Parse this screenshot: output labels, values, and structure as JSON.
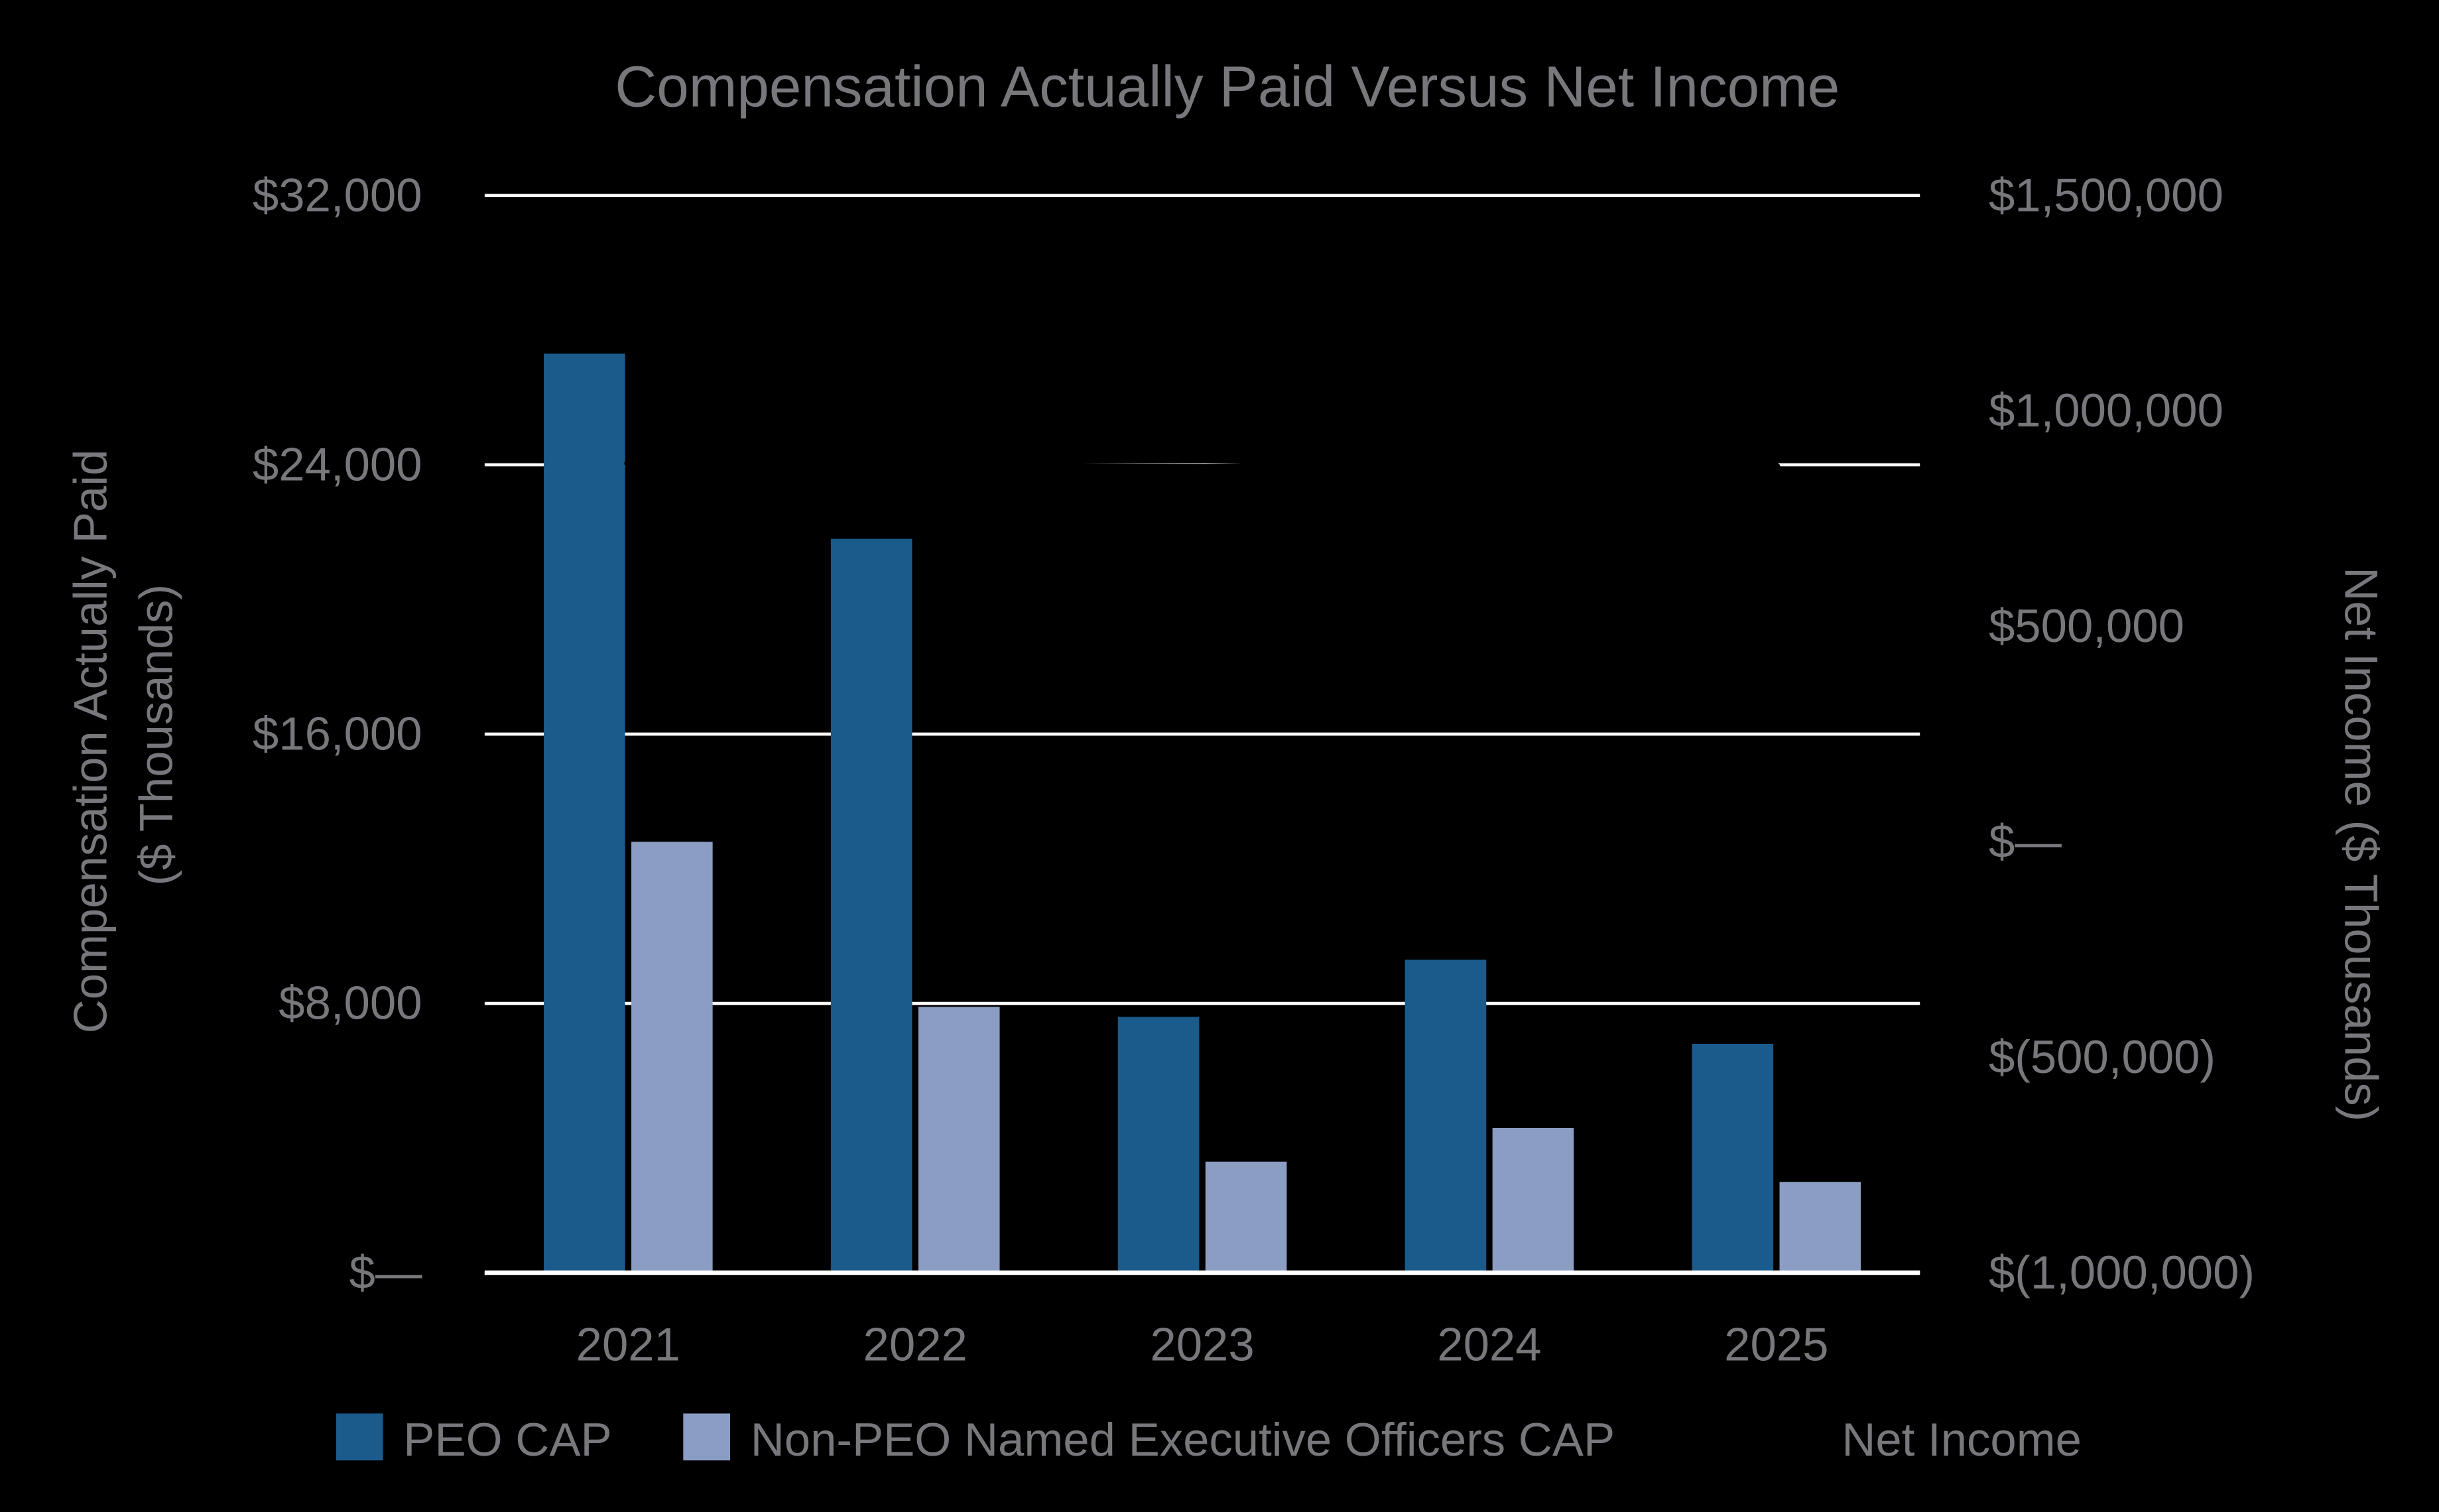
{
  "chart_data": {
    "type": "bar",
    "title": "Compensation Actually Paid Versus Net Income",
    "categories": [
      "2021",
      "2022",
      "2023",
      "2024",
      "2025"
    ],
    "series": [
      {
        "name": "PEO CAP",
        "type": "bar",
        "axis": "left",
        "color": "#1A5B8C",
        "values": [
          27300,
          21800,
          7600,
          9300,
          6800
        ]
      },
      {
        "name": "Non-PEO Named Executive Officers CAP",
        "type": "bar",
        "axis": "left",
        "color": "#8C9DC3",
        "values": [
          12800,
          7900,
          3300,
          4300,
          2700
        ]
      },
      {
        "name": "Net Income",
        "type": "line",
        "axis": "right",
        "color": "#000000",
        "values": [
          878000,
          872000,
          868000,
          880000,
          870000
        ]
      }
    ],
    "left_axis": {
      "title": "Compensation Actually Paid ($ Thousands)",
      "title_lines": [
        "Compensation Actually Paid",
        "($ Thousands)"
      ],
      "min": 0,
      "max": 32000,
      "ticks": [
        {
          "value": 32000,
          "label": "$32,000"
        },
        {
          "value": 24000,
          "label": "$24,000"
        },
        {
          "value": 16000,
          "label": "$16,000"
        },
        {
          "value": 8000,
          "label": "$8,000"
        },
        {
          "value": 0,
          "label": "$—"
        }
      ]
    },
    "right_axis": {
      "title": "Net Income ($ Thousands)",
      "min": -1000000,
      "max": 1500000,
      "ticks": [
        {
          "value": 1500000,
          "label": "$1,500,000"
        },
        {
          "value": 1000000,
          "label": "$1,000,000"
        },
        {
          "value": 500000,
          "label": "$500,000"
        },
        {
          "value": 0,
          "label": "$—"
        },
        {
          "value": -500000,
          "label": "$(500,000)"
        },
        {
          "value": -1000000,
          "label": "$(1,000,000)"
        }
      ]
    },
    "legend_position": "bottom",
    "background_color": "#000000",
    "gridline_color": "#FFFFFF",
    "text_color": "#77787B",
    "grid": true
  }
}
